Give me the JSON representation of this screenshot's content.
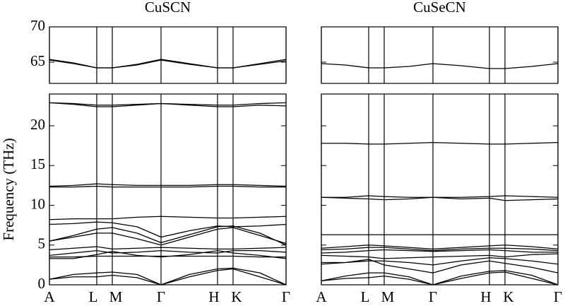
{
  "chart_data": [
    {
      "type": "line",
      "title": "CuSCN",
      "y_label": "Frequency (THz)",
      "color": "#000000",
      "grid": true,
      "show_ytick_labels": true,
      "x": [
        0,
        34,
        67,
        89,
        124,
        158,
        198,
        238,
        260,
        298,
        335
      ],
      "xlim": [
        0,
        335
      ],
      "xticks": [
        {
          "value": 0,
          "label": "A"
        },
        {
          "value": 67,
          "label": "L"
        },
        {
          "value": 89,
          "label": "M"
        },
        {
          "value": 158,
          "label": "Γ"
        },
        {
          "value": 238,
          "label": "H"
        },
        {
          "value": 260,
          "label": "K"
        },
        {
          "value": 335,
          "label": "Γ"
        }
      ],
      "ylim": [
        0,
        24
      ],
      "yticks": [
        0,
        5,
        10,
        15,
        20
      ],
      "y2lim": [
        62,
        70
      ],
      "y2ticks": [
        65,
        70
      ],
      "series": [
        {
          "axis": "y2",
          "values": [
            65.4,
            64.9,
            64.2,
            64.2,
            64.7,
            65.4,
            64.8,
            64.2,
            64.2,
            64.8,
            65.4
          ]
        },
        {
          "axis": "y2",
          "values": [
            65.3,
            64.8,
            64.2,
            64.2,
            64.6,
            65.3,
            64.7,
            64.2,
            64.2,
            64.7,
            65.2
          ]
        },
        {
          "values": [
            22.9,
            22.8,
            22.6,
            22.6,
            22.7,
            22.8,
            22.7,
            22.6,
            22.6,
            22.8,
            22.9
          ]
        },
        {
          "values": [
            22.9,
            22.7,
            22.4,
            22.4,
            22.6,
            22.8,
            22.6,
            22.4,
            22.4,
            22.6,
            22.5
          ]
        },
        {
          "values": [
            12.4,
            12.5,
            12.7,
            12.6,
            12.5,
            12.5,
            12.5,
            12.6,
            12.6,
            12.5,
            12.4
          ]
        },
        {
          "values": [
            12.3,
            12.3,
            12.4,
            12.3,
            12.3,
            12.3,
            12.3,
            12.4,
            12.4,
            12.3,
            12.3
          ]
        },
        {
          "values": [
            8.2,
            8.3,
            8.3,
            8.3,
            8.5,
            8.6,
            8.5,
            8.4,
            8.4,
            8.5,
            8.6
          ]
        },
        {
          "values": [
            7.6,
            7.7,
            7.9,
            7.8,
            7.3,
            6.0,
            6.8,
            7.4,
            7.3,
            7.4,
            7.6
          ]
        },
        {
          "values": [
            5.5,
            6.2,
            7.0,
            7.2,
            6.5,
            5.3,
            6.3,
            7.3,
            7.4,
            6.5,
            5.0
          ]
        },
        {
          "values": [
            5.5,
            6.0,
            6.5,
            6.5,
            5.8,
            5.0,
            6.0,
            7.0,
            7.2,
            6.2,
            5.2
          ]
        },
        {
          "values": [
            4.4,
            4.6,
            4.8,
            4.5,
            4.6,
            4.7,
            4.6,
            4.5,
            4.5,
            4.6,
            4.7
          ]
        },
        {
          "values": [
            3.7,
            4.0,
            4.3,
            4.0,
            4.1,
            4.3,
            4.1,
            4.0,
            4.3,
            4.3,
            4.1
          ]
        },
        {
          "values": [
            3.5,
            3.5,
            3.6,
            3.6,
            3.6,
            3.6,
            3.6,
            3.6,
            3.6,
            3.5,
            3.5
          ]
        },
        {
          "values": [
            3.3,
            3.3,
            3.8,
            4.2,
            3.7,
            3.5,
            3.8,
            4.3,
            4.0,
            3.7,
            3.3
          ]
        },
        {
          "values": [
            0.7,
            1.3,
            1.5,
            1.6,
            1.3,
            0,
            1.3,
            2.0,
            2.1,
            1.5,
            0
          ]
        },
        {
          "values": [
            0.7,
            1.0,
            1.0,
            1.2,
            0.9,
            0,
            1.0,
            1.8,
            2.0,
            1.0,
            0
          ]
        }
      ]
    },
    {
      "type": "line",
      "title": "CuSeCN",
      "color": "#000000",
      "grid": true,
      "show_ytick_labels": false,
      "x": [
        0,
        34,
        67,
        89,
        124,
        158,
        198,
        238,
        260,
        298,
        335
      ],
      "xlim": [
        0,
        335
      ],
      "xticks": [
        {
          "value": 0,
          "label": "A"
        },
        {
          "value": 67,
          "label": "L"
        },
        {
          "value": 89,
          "label": "M"
        },
        {
          "value": 158,
          "label": "Γ"
        },
        {
          "value": 238,
          "label": "H"
        },
        {
          "value": 260,
          "label": "K"
        },
        {
          "value": 335,
          "label": "Γ"
        }
      ],
      "ylim": [
        0,
        24
      ],
      "yticks": [
        0,
        5,
        10,
        15,
        20
      ],
      "y2lim": [
        62,
        70
      ],
      "y2ticks": [
        65,
        70
      ],
      "series": [
        {
          "axis": "y2",
          "values": [
            64.8,
            64.6,
            64.2,
            64.2,
            64.4,
            64.8,
            64.5,
            64.1,
            64.1,
            64.4,
            64.8
          ]
        },
        {
          "values": [
            17.8,
            17.8,
            17.7,
            17.7,
            17.8,
            17.9,
            17.8,
            17.7,
            17.7,
            17.8,
            17.9
          ]
        },
        {
          "values": [
            11.0,
            11.0,
            11.2,
            11.1,
            11.0,
            11.0,
            11.0,
            11.1,
            11.2,
            11.1,
            11.0
          ]
        },
        {
          "values": [
            11.0,
            10.9,
            10.8,
            10.7,
            10.8,
            11.0,
            10.8,
            10.9,
            10.6,
            10.7,
            10.8
          ]
        },
        {
          "values": [
            6.3,
            6.3,
            6.3,
            6.3,
            6.3,
            6.3,
            6.3,
            6.3,
            6.3,
            6.3,
            6.3
          ]
        },
        {
          "values": [
            4.6,
            4.8,
            5.0,
            4.9,
            4.7,
            4.5,
            4.7,
            4.9,
            5.0,
            4.8,
            4.5
          ]
        },
        {
          "values": [
            4.4,
            4.5,
            4.7,
            4.7,
            4.5,
            4.3,
            4.5,
            4.6,
            4.6,
            4.5,
            4.3
          ]
        },
        {
          "values": [
            4.0,
            4.1,
            4.3,
            4.4,
            4.3,
            4.2,
            4.3,
            4.4,
            4.3,
            4.1,
            4.1
          ]
        },
        {
          "values": [
            3.7,
            3.6,
            3.5,
            3.3,
            3.4,
            3.5,
            3.6,
            3.7,
            3.5,
            3.8,
            3.9
          ]
        },
        {
          "values": [
            2.8,
            2.8,
            3.0,
            3.0,
            2.8,
            2.5,
            3.0,
            3.4,
            3.3,
            3.0,
            2.6
          ]
        },
        {
          "values": [
            2.6,
            2.8,
            3.2,
            2.5,
            2.0,
            1.5,
            2.5,
            3.0,
            2.7,
            2.2,
            1.5
          ]
        },
        {
          "values": [
            0.5,
            1.1,
            1.5,
            1.5,
            1.0,
            0,
            1.1,
            1.7,
            1.8,
            1.2,
            0
          ]
        },
        {
          "values": [
            0.5,
            0.8,
            0.9,
            1.1,
            0.7,
            0,
            0.8,
            1.5,
            1.6,
            0.8,
            0
          ]
        }
      ]
    }
  ]
}
